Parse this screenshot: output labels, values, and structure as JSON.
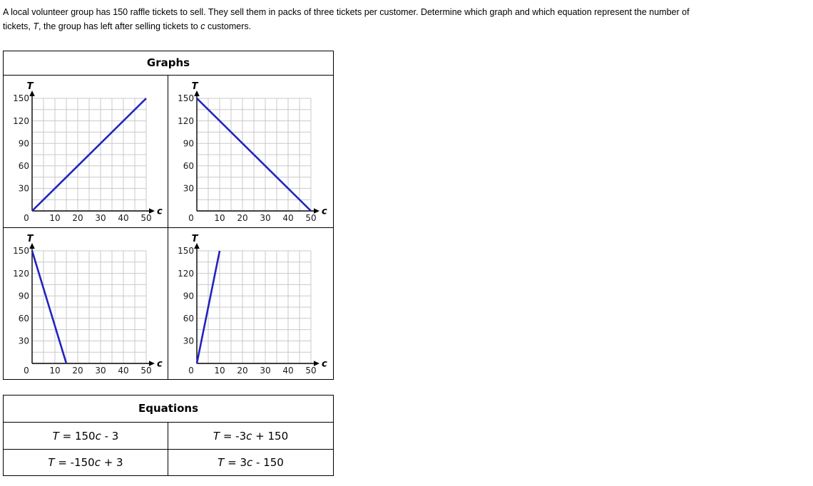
{
  "statement": {
    "line1": "A local volunteer group has 150 raffle tickets to sell. They sell them in packs of three tickets per customer. Determine which graph and which equation represent the number of",
    "line2_pre": "tickets, ",
    "var_T": "T",
    "line2_mid": ", the group has left after selling tickets to ",
    "var_c": "c",
    "line2_post": " customers."
  },
  "graphs": {
    "title": "Graphs"
  },
  "equations": {
    "title": "Equations",
    "items": [
      {
        "lhs": "T",
        "eq": " = ",
        "coef": "150",
        "var": "c",
        "tail": " - 3"
      },
      {
        "lhs": "T",
        "eq": " = ",
        "coef": "-3",
        "var": "c",
        "tail": " + 150"
      },
      {
        "lhs": "T",
        "eq": " = ",
        "coef": "-150",
        "var": "c",
        "tail": " + 3"
      },
      {
        "lhs": "T",
        "eq": " = ",
        "coef": "3",
        "var": "c",
        "tail": " - 150"
      }
    ]
  },
  "colors": {
    "line_blue": "#2222c0",
    "gridline": "#c9c9c9",
    "axis": "#000000",
    "tick_text": "#1a1a1a",
    "border": "#000000"
  },
  "chart_data": [
    {
      "type": "line",
      "title": "",
      "xlabel": "c",
      "ylabel": "T",
      "xlim": [
        0,
        50
      ],
      "ylim": [
        0,
        150
      ],
      "xticks": [
        0,
        10,
        20,
        30,
        40,
        50
      ],
      "yticks": [
        30,
        60,
        90,
        120,
        150
      ],
      "grid": true,
      "grid_step_x": 5,
      "grid_step_y": 15,
      "series": [
        {
          "name": "option-1",
          "x": [
            0,
            50
          ],
          "y": [
            0,
            150
          ]
        }
      ],
      "color": "#2222c0"
    },
    {
      "type": "line",
      "title": "",
      "xlabel": "c",
      "ylabel": "T",
      "xlim": [
        0,
        50
      ],
      "ylim": [
        0,
        150
      ],
      "xticks": [
        0,
        10,
        20,
        30,
        40,
        50
      ],
      "yticks": [
        30,
        60,
        90,
        120,
        150
      ],
      "grid": true,
      "grid_step_x": 5,
      "grid_step_y": 15,
      "series": [
        {
          "name": "option-2",
          "x": [
            0,
            50
          ],
          "y": [
            150,
            0
          ]
        }
      ],
      "color": "#2222c0"
    },
    {
      "type": "line",
      "title": "",
      "xlabel": "c",
      "ylabel": "T",
      "xlim": [
        0,
        50
      ],
      "ylim": [
        0,
        150
      ],
      "xticks": [
        0,
        10,
        20,
        30,
        40,
        50
      ],
      "yticks": [
        30,
        60,
        90,
        120,
        150
      ],
      "grid": true,
      "grid_step_x": 5,
      "grid_step_y": 15,
      "series": [
        {
          "name": "option-3",
          "x": [
            0,
            15
          ],
          "y": [
            150,
            0
          ]
        }
      ],
      "color": "#2222c0"
    },
    {
      "type": "line",
      "title": "",
      "xlabel": "c",
      "ylabel": "T",
      "xlim": [
        0,
        50
      ],
      "ylim": [
        0,
        150
      ],
      "xticks": [
        0,
        10,
        20,
        30,
        40,
        50
      ],
      "yticks": [
        30,
        60,
        90,
        120,
        150
      ],
      "grid": true,
      "grid_step_x": 5,
      "grid_step_y": 15,
      "series": [
        {
          "name": "option-4",
          "x": [
            0,
            10
          ],
          "y": [
            0,
            150
          ]
        }
      ],
      "color": "#2222c0"
    }
  ]
}
